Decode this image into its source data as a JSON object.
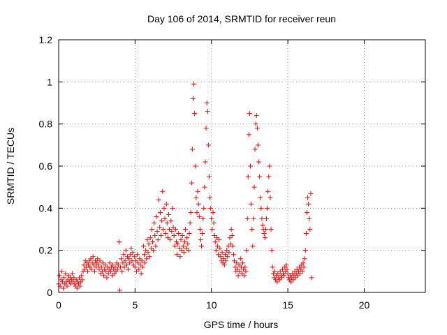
{
  "chart_data": {
    "type": "scatter",
    "title": "Day 106 of 2014, SRMTID for receiver reun",
    "xlabel": "GPS time / hours",
    "ylabel": "SRMTID / TECUs",
    "xlim": [
      0,
      24
    ],
    "ylim": [
      0,
      1.2
    ],
    "xticks": [
      0,
      5,
      10,
      15,
      20
    ],
    "xtick_labels": [
      "0",
      "5",
      "10",
      "15",
      "20"
    ],
    "yticks": [
      0,
      0.2,
      0.4,
      0.6,
      0.8,
      1.0,
      1.2
    ],
    "ytick_labels": [
      "0",
      "0.2",
      "0.4",
      "0.6",
      "0.8",
      "1",
      "1.2"
    ],
    "grid": true,
    "marker": "plus",
    "color": "#ff0000",
    "x": [
      0.0,
      0.05,
      0.1,
      0.15,
      0.2,
      0.25,
      0.3,
      0.35,
      0.4,
      0.45,
      0.5,
      0.55,
      0.6,
      0.65,
      0.7,
      0.75,
      0.8,
      0.85,
      0.9,
      0.95,
      1.0,
      1.05,
      1.1,
      1.15,
      1.2,
      1.25,
      1.3,
      1.35,
      1.4,
      1.45,
      1.5,
      1.55,
      1.6,
      1.65,
      1.7,
      1.75,
      1.8,
      1.85,
      1.9,
      1.95,
      2.0,
      2.05,
      2.1,
      2.15,
      2.2,
      2.25,
      2.3,
      2.35,
      2.4,
      2.45,
      2.5,
      2.55,
      2.6,
      2.65,
      2.7,
      2.75,
      2.8,
      2.85,
      2.9,
      2.95,
      3.0,
      3.05,
      3.1,
      3.15,
      3.2,
      3.25,
      3.3,
      3.35,
      3.4,
      3.45,
      3.5,
      3.55,
      3.6,
      3.65,
      3.7,
      3.75,
      3.8,
      3.85,
      3.9,
      3.95,
      4.0,
      4.05,
      4.1,
      4.15,
      4.2,
      4.25,
      4.3,
      4.35,
      4.4,
      4.45,
      4.5,
      4.55,
      4.6,
      4.65,
      4.7,
      4.75,
      4.8,
      4.85,
      4.9,
      4.95,
      5.0,
      5.05,
      5.1,
      5.15,
      5.2,
      5.25,
      5.3,
      5.35,
      5.4,
      5.45,
      5.5,
      5.55,
      5.6,
      5.65,
      5.7,
      5.75,
      5.8,
      5.85,
      5.9,
      5.95,
      6.0,
      6.05,
      6.1,
      6.15,
      6.2,
      6.25,
      6.3,
      6.35,
      6.4,
      6.45,
      6.5,
      6.55,
      6.6,
      6.65,
      6.7,
      6.75,
      6.8,
      6.85,
      6.9,
      6.95,
      7.0,
      7.05,
      7.1,
      7.15,
      7.2,
      7.25,
      7.3,
      7.35,
      7.4,
      7.45,
      7.5,
      7.55,
      7.6,
      7.65,
      7.7,
      7.75,
      7.8,
      7.85,
      7.9,
      7.95,
      8.0,
      8.05,
      8.1,
      8.15,
      8.2,
      8.25,
      8.3,
      8.35,
      8.4,
      8.45,
      8.5,
      8.55,
      8.6,
      8.65,
      8.7,
      8.75,
      8.8,
      8.85,
      8.9,
      8.95,
      9.0,
      9.05,
      9.1,
      9.15,
      9.2,
      9.25,
      9.3,
      9.35,
      9.4,
      9.45,
      9.5,
      9.55,
      9.6,
      9.65,
      9.7,
      9.75,
      9.8,
      9.85,
      9.9,
      9.95,
      10.0,
      10.05,
      10.1,
      10.15,
      10.2,
      10.25,
      10.3,
      10.35,
      10.4,
      10.45,
      10.5,
      10.55,
      10.6,
      10.65,
      10.7,
      10.75,
      10.8,
      10.85,
      10.9,
      10.95,
      11.0,
      11.05,
      11.1,
      11.15,
      11.2,
      11.25,
      11.3,
      11.35,
      11.4,
      11.45,
      11.5,
      11.55,
      11.6,
      11.65,
      11.7,
      11.75,
      11.8,
      11.85,
      11.9,
      11.95,
      12.0,
      12.05,
      12.1,
      12.15,
      12.2,
      12.25,
      12.3,
      12.35,
      12.4,
      12.45,
      12.5,
      12.55,
      12.6,
      12.65,
      12.7,
      12.75,
      12.8,
      12.85,
      12.9,
      12.95,
      13.0,
      13.05,
      13.1,
      13.15,
      13.2,
      13.25,
      13.3,
      13.35,
      13.4,
      13.45,
      13.5,
      13.55,
      13.6,
      13.65,
      13.7,
      13.75,
      13.8,
      13.85,
      13.9,
      13.95,
      14.0,
      14.05,
      14.1,
      14.15,
      14.2,
      14.25,
      14.3,
      14.35,
      14.4,
      14.45,
      14.5,
      14.55,
      14.6,
      14.65,
      14.7,
      14.75,
      14.8,
      14.85,
      14.9,
      14.95,
      15.0,
      15.05,
      15.1,
      15.15,
      15.2,
      15.25,
      15.3,
      15.35,
      15.4,
      15.45,
      15.5,
      15.55,
      15.6,
      15.65,
      15.7,
      15.75,
      15.8,
      15.85,
      15.9,
      15.95,
      16.0,
      16.05,
      16.1,
      16.15,
      16.2,
      16.25,
      16.3,
      16.35,
      16.4,
      16.45,
      16.5,
      16.55
    ],
    "y": [
      0.04,
      0.08,
      0.03,
      0.06,
      0.1,
      0.05,
      0.02,
      0.07,
      0.04,
      0.09,
      0.05,
      0.03,
      0.06,
      0.08,
      0.05,
      0.07,
      0.04,
      0.06,
      0.09,
      0.05,
      0.07,
      0.04,
      0.03,
      0.06,
      0.02,
      0.05,
      0.04,
      0.07,
      0.03,
      0.05,
      0.08,
      0.06,
      0.1,
      0.13,
      0.11,
      0.15,
      0.12,
      0.14,
      0.1,
      0.13,
      0.15,
      0.12,
      0.16,
      0.11,
      0.14,
      0.17,
      0.13,
      0.1,
      0.15,
      0.12,
      0.14,
      0.16,
      0.13,
      0.11,
      0.15,
      0.09,
      0.12,
      0.1,
      0.14,
      0.08,
      0.11,
      0.13,
      0.1,
      0.07,
      0.12,
      0.09,
      0.11,
      0.14,
      0.1,
      0.12,
      0.08,
      0.13,
      0.11,
      0.09,
      0.12,
      0.1,
      0.14,
      0.11,
      0.13,
      0.24,
      0.01,
      0.12,
      0.16,
      0.1,
      0.14,
      0.18,
      0.12,
      0.15,
      0.2,
      0.13,
      0.17,
      0.11,
      0.16,
      0.14,
      0.18,
      0.21,
      0.15,
      0.19,
      0.13,
      0.17,
      0.12,
      0.15,
      0.1,
      0.18,
      0.14,
      0.11,
      0.16,
      0.13,
      0.09,
      0.15,
      0.12,
      0.22,
      0.18,
      0.14,
      0.2,
      0.16,
      0.25,
      0.19,
      0.23,
      0.17,
      0.26,
      0.21,
      0.3,
      0.24,
      0.2,
      0.33,
      0.27,
      0.22,
      0.36,
      0.29,
      0.25,
      0.44,
      0.31,
      0.38,
      0.27,
      0.34,
      0.48,
      0.3,
      0.4,
      0.35,
      0.28,
      0.42,
      0.33,
      0.26,
      0.37,
      0.3,
      0.25,
      0.34,
      0.29,
      0.4,
      0.31,
      0.27,
      0.22,
      0.3,
      0.24,
      0.18,
      0.23,
      0.28,
      0.21,
      0.17,
      0.25,
      0.2,
      0.27,
      0.22,
      0.19,
      0.24,
      0.3,
      0.21,
      0.26,
      0.23,
      0.2,
      0.28,
      0.33,
      0.38,
      0.52,
      0.68,
      0.92,
      0.99,
      0.85,
      0.6,
      0.45,
      0.38,
      0.48,
      0.42,
      0.36,
      0.3,
      0.25,
      0.22,
      0.28,
      0.35,
      0.4,
      0.5,
      0.62,
      0.78,
      0.9,
      0.86,
      0.7,
      0.55,
      0.45,
      0.4,
      0.35,
      0.3,
      0.38,
      0.33,
      0.27,
      0.24,
      0.2,
      0.26,
      0.22,
      0.18,
      0.25,
      0.21,
      0.17,
      0.15,
      0.19,
      0.14,
      0.16,
      0.13,
      0.18,
      0.15,
      0.2,
      0.17,
      0.22,
      0.19,
      0.26,
      0.23,
      0.3,
      0.27,
      0.22,
      0.18,
      0.15,
      0.12,
      0.1,
      0.14,
      0.11,
      0.08,
      0.13,
      0.1,
      0.16,
      0.12,
      0.09,
      0.14,
      0.11,
      0.08,
      0.12,
      0.1,
      0.2,
      0.35,
      0.55,
      0.75,
      0.85,
      0.6,
      0.42,
      0.3,
      0.22,
      0.35,
      0.5,
      0.68,
      0.8,
      0.84,
      0.78,
      0.7,
      0.62,
      0.55,
      0.45,
      0.4,
      0.35,
      0.32,
      0.3,
      0.28,
      0.26,
      0.3,
      0.35,
      0.4,
      0.48,
      0.55,
      0.6,
      0.45,
      0.3,
      0.2,
      0.12,
      0.09,
      0.07,
      0.1,
      0.06,
      0.08,
      0.05,
      0.09,
      0.07,
      0.06,
      0.1,
      0.08,
      0.07,
      0.11,
      0.09,
      0.08,
      0.12,
      0.1,
      0.13,
      0.11,
      0.09,
      0.07,
      0.06,
      0.08,
      0.05,
      0.07,
      0.09,
      0.06,
      0.08,
      0.1,
      0.07,
      0.09,
      0.11,
      0.08,
      0.1,
      0.12,
      0.09,
      0.11,
      0.13,
      0.1,
      0.14,
      0.12,
      0.16,
      0.2,
      0.28,
      0.38,
      0.45,
      0.42,
      0.35,
      0.3,
      0.47,
      0.07
    ]
  }
}
